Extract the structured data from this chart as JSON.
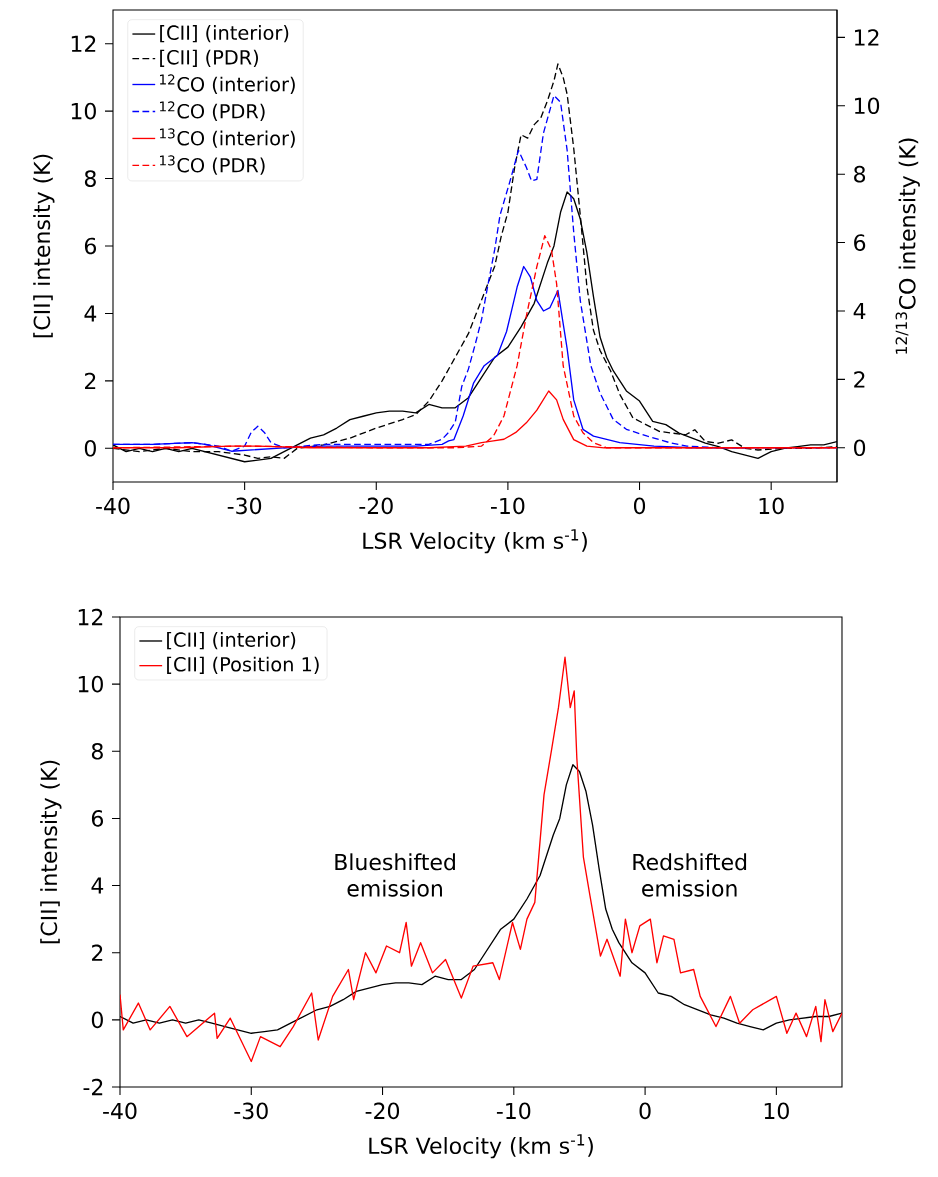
{
  "chart_data": [
    {
      "type": "line",
      "xlabel": "LSR Velocity (km s$^{-1}$)",
      "ylabel": "[CII] intensity (K)",
      "y2label": "$^{12/13}$CO intensity (K)",
      "xlim": [
        -40,
        15
      ],
      "ylim": [
        -1,
        13
      ],
      "y2lim": [
        -1,
        12.8
      ],
      "xticks": [
        -40,
        -30,
        -20,
        -10,
        0,
        10
      ],
      "yticks": [
        0,
        2,
        4,
        6,
        8,
        10,
        12
      ],
      "y2ticks": [
        0,
        2,
        4,
        6,
        8,
        10,
        12
      ],
      "legend": "top left",
      "series": [
        {
          "name": "[CII] (interior)",
          "color": "#000000",
          "line_style": "solid",
          "x": [
            -40,
            -39,
            -38,
            -37,
            -36,
            -35,
            -34,
            -33,
            -32,
            -31,
            -30,
            -29,
            -28,
            -27,
            -26,
            -25,
            -24,
            -23,
            -22,
            -21,
            -20,
            -19,
            -18,
            -17,
            -16,
            -15,
            -14,
            -13,
            -12,
            -11,
            -10,
            -9,
            -8,
            -7,
            -6.5,
            -6,
            -5.5,
            -5,
            -4.5,
            -4,
            -3.5,
            -3,
            -2.5,
            -2,
            -1,
            0,
            1,
            2,
            3,
            4,
            5,
            6,
            7,
            8,
            9,
            10,
            11,
            12,
            13,
            14,
            15
          ],
          "values": [
            0.1,
            -0.1,
            0.0,
            -0.1,
            0.0,
            -0.1,
            0.0,
            -0.1,
            -0.2,
            -0.3,
            -0.4,
            -0.35,
            -0.3,
            -0.1,
            0.1,
            0.3,
            0.4,
            0.6,
            0.85,
            0.95,
            1.05,
            1.1,
            1.1,
            1.05,
            1.3,
            1.2,
            1.2,
            1.5,
            2.1,
            2.7,
            3.0,
            3.6,
            4.3,
            5.5,
            6.0,
            7.0,
            7.6,
            7.4,
            6.8,
            5.8,
            4.5,
            3.3,
            2.7,
            2.3,
            1.7,
            1.4,
            0.8,
            0.7,
            0.45,
            0.3,
            0.15,
            0.05,
            -0.1,
            -0.2,
            -0.3,
            -0.1,
            0.0,
            0.05,
            0.1,
            0.1,
            0.2
          ]
        },
        {
          "name": "[CII] (PDR)",
          "color": "#000000",
          "line_style": "dashed",
          "x": [
            -40,
            -38,
            -36,
            -34,
            -32,
            -30,
            -29,
            -28,
            -27,
            -26,
            -24,
            -22,
            -20,
            -18,
            -17,
            -16,
            -15,
            -14,
            -13,
            -12,
            -11,
            -10.5,
            -10,
            -9.5,
            -9,
            -8.5,
            -8,
            -7.5,
            -7,
            -6.5,
            -6.2,
            -5.8,
            -5.5,
            -5,
            -4.5,
            -4,
            -3.5,
            -3,
            -2.2,
            -1.5,
            -0.5,
            0.5,
            1.5,
            2.5,
            3.5,
            4.2,
            5,
            6,
            7,
            8,
            9,
            11,
            13,
            15
          ],
          "values": [
            0.0,
            -0.1,
            0.0,
            -0.1,
            -0.1,
            -0.2,
            -0.3,
            -0.25,
            -0.3,
            0.0,
            0.1,
            0.3,
            0.6,
            0.85,
            1.0,
            1.4,
            2.0,
            2.7,
            3.4,
            4.4,
            5.4,
            6.3,
            7.0,
            8.3,
            9.3,
            9.2,
            9.6,
            9.8,
            10.3,
            10.9,
            11.4,
            11.0,
            10.5,
            8.9,
            6.9,
            4.8,
            3.5,
            2.9,
            2.3,
            1.6,
            0.9,
            0.7,
            0.5,
            0.45,
            0.4,
            0.55,
            0.2,
            0.15,
            0.25,
            0.0,
            -0.05,
            0.0,
            0.0,
            0.05
          ]
        },
        {
          "name": "$^{12}$CO (interior)",
          "color": "#0000ff",
          "line_style": "solid",
          "axis": "y2",
          "x": [
            -40,
            -37,
            -34,
            -33,
            -31,
            -29,
            -27,
            -24,
            -20,
            -17,
            -15,
            -14.5,
            -14.1,
            -13.4,
            -12.6,
            -11.8,
            -10.8,
            -10.1,
            -9.3,
            -8.8,
            -8.3,
            -7.8,
            -7.3,
            -6.8,
            -6.2,
            -5.5,
            -5,
            -4.3,
            -3.5,
            -1.5,
            1.1,
            4,
            8
          ],
          "values": [
            0.1,
            0.1,
            0.15,
            0.1,
            -0.1,
            -0.05,
            0.0,
            0.05,
            0.05,
            0.05,
            0.1,
            0.2,
            0.24,
            0.93,
            1.9,
            2.4,
            2.7,
            3.4,
            4.7,
            5.3,
            5.0,
            4.3,
            4.0,
            4.1,
            4.6,
            2.9,
            1.4,
            0.54,
            0.34,
            0.15,
            0.05,
            0.0,
            0.0
          ]
        },
        {
          "name": "$^{12}$CO (PDR)",
          "color": "#0000ff",
          "line_style": "dashed",
          "axis": "y2",
          "x": [
            -40,
            -37,
            -34,
            -32,
            -31,
            -30,
            -29.5,
            -29,
            -28.5,
            -28,
            -27,
            -24,
            -20,
            -16,
            -15,
            -14.5,
            -14,
            -13.5,
            -13,
            -12.5,
            -12,
            -11.5,
            -11,
            -10.6,
            -9.8,
            -9.2,
            -8.6,
            -8.2,
            -7.8,
            -7.3,
            -6.5,
            -6,
            -5.5,
            -5,
            -4.5,
            -3.7,
            -3,
            -2,
            -1,
            0.6,
            2.3,
            3.6,
            6,
            10,
            15
          ],
          "values": [
            0.1,
            0.1,
            0.15,
            0.05,
            -0.1,
            0.05,
            0.45,
            0.63,
            0.45,
            0.15,
            0.0,
            0.1,
            0.1,
            0.1,
            0.25,
            0.45,
            0.75,
            1.8,
            2.3,
            3.0,
            3.75,
            4.8,
            5.8,
            6.8,
            7.85,
            8.7,
            8.2,
            7.8,
            7.85,
            9.2,
            10.3,
            10.1,
            8.7,
            6.3,
            4.3,
            2.4,
            1.6,
            0.83,
            0.54,
            0.34,
            0.15,
            0.05,
            0.0,
            0.0,
            0.0
          ]
        },
        {
          "name": "$^{13}$CO (interior)",
          "color": "#ff0000",
          "line_style": "solid",
          "axis": "y2",
          "x": [
            -40,
            -35,
            -31,
            -29,
            -25,
            -20,
            -16,
            -13.2,
            -12,
            -11.1,
            -10.3,
            -9.4,
            -8.6,
            -7.8,
            -6.9,
            -6.3,
            -5.8,
            -5,
            -4,
            -2.7,
            0,
            5,
            10,
            15
          ],
          "values": [
            0.0,
            0.0,
            0.05,
            0.05,
            0.0,
            0.0,
            0.0,
            0.05,
            0.15,
            0.2,
            0.25,
            0.45,
            0.73,
            1.1,
            1.66,
            1.4,
            0.83,
            0.24,
            0.05,
            0.0,
            0.0,
            0.0,
            0.0,
            0.0
          ]
        },
        {
          "name": "$^{13}$CO (PDR)",
          "color": "#ff0000",
          "line_style": "dashed",
          "axis": "y2",
          "x": [
            -40,
            -30,
            -20,
            -14,
            -12,
            -11.1,
            -10.3,
            -9.3,
            -8.6,
            -7.8,
            -7.2,
            -6.7,
            -6.3,
            -5.8,
            -5,
            -4.3,
            -3.5,
            -2.5,
            0,
            5,
            10,
            15
          ],
          "values": [
            0.0,
            0.05,
            0.0,
            0.0,
            0.05,
            0.34,
            0.93,
            2.4,
            3.85,
            5.3,
            6.2,
            5.8,
            4.8,
            2.4,
            0.93,
            0.44,
            0.15,
            0.0,
            0.0,
            0.0,
            0.0,
            0.0
          ]
        }
      ]
    },
    {
      "type": "line",
      "xlabel": "LSR Velocity (km s$^{-1}$)",
      "ylabel": "[CII] intensity (K)",
      "xlim": [
        -40,
        15
      ],
      "ylim": [
        -2,
        12
      ],
      "xticks": [
        -40,
        -30,
        -20,
        -10,
        0,
        10
      ],
      "yticks": [
        -2,
        0,
        2,
        4,
        6,
        8,
        10,
        12
      ],
      "legend": "top left",
      "annotations": [
        "Blueshifted emission",
        "Redshifted emission"
      ],
      "series": [
        {
          "name": "[CII] (interior)",
          "color": "#000000",
          "line_style": "solid",
          "x": [
            -40,
            -39,
            -38,
            -37,
            -36,
            -35,
            -34,
            -33,
            -32,
            -31,
            -30,
            -29,
            -28,
            -27,
            -26,
            -25,
            -24,
            -23,
            -22,
            -21,
            -20,
            -19,
            -18,
            -17,
            -16,
            -15,
            -14,
            -13,
            -12,
            -11,
            -10,
            -9,
            -8,
            -7,
            -6.5,
            -6,
            -5.5,
            -5,
            -4.5,
            -4,
            -3.5,
            -3,
            -2.5,
            -2,
            -1,
            0,
            1,
            2,
            3,
            4,
            5,
            6,
            7,
            8,
            9,
            10,
            11,
            12,
            13,
            14,
            15
          ],
          "values": [
            0.1,
            -0.1,
            0.0,
            -0.1,
            0.0,
            -0.1,
            0.0,
            -0.1,
            -0.2,
            -0.3,
            -0.4,
            -0.35,
            -0.3,
            -0.1,
            0.1,
            0.3,
            0.4,
            0.6,
            0.85,
            0.95,
            1.05,
            1.1,
            1.1,
            1.05,
            1.3,
            1.2,
            1.2,
            1.5,
            2.1,
            2.7,
            3.0,
            3.6,
            4.3,
            5.5,
            6.0,
            7.0,
            7.6,
            7.4,
            6.8,
            5.8,
            4.5,
            3.3,
            2.7,
            2.3,
            1.7,
            1.4,
            0.8,
            0.7,
            0.45,
            0.3,
            0.15,
            0.05,
            -0.1,
            -0.2,
            -0.3,
            -0.1,
            0.0,
            0.05,
            0.1,
            0.1,
            0.2
          ]
        },
        {
          "name": "[CII] (Position 1)",
          "color": "#ff0000",
          "line_style": "solid",
          "x": [
            -40,
            -39.75,
            -38.6,
            -37.7,
            -36.2,
            -34.9,
            -32.8,
            -32.6,
            -31.6,
            -30,
            -29.3,
            -27.8,
            -26.8,
            -25.4,
            -24.9,
            -23.8,
            -22.6,
            -22.2,
            -21.3,
            -20.5,
            -19.7,
            -18.7,
            -18.2,
            -17.8,
            -17.1,
            -16.2,
            -15.2,
            -14,
            -13.1,
            -11.6,
            -11.1,
            -10.1,
            -9.5,
            -9,
            -8.4,
            -7.7,
            -7.1,
            -6.6,
            -6.1,
            -5.7,
            -5.4,
            -5.2,
            -4.7,
            -4.2,
            -3.4,
            -2.9,
            -1.9,
            -1.5,
            -1,
            -0.4,
            0.4,
            0.9,
            1.4,
            2.2,
            2.7,
            3.7,
            4.2,
            5.4,
            6.5,
            7.2,
            8.2,
            10,
            10.8,
            11.5,
            12.3,
            13,
            13.4,
            13.7,
            14.3,
            15
          ],
          "values": [
            0.75,
            -0.3,
            0.5,
            -0.3,
            0.4,
            -0.5,
            0.2,
            -0.55,
            0.05,
            -1.24,
            -0.5,
            -0.8,
            -0.2,
            0.8,
            -0.6,
            0.7,
            1.5,
            0.6,
            2.0,
            1.4,
            2.2,
            2.0,
            2.9,
            1.6,
            2.3,
            1.4,
            1.8,
            0.65,
            1.6,
            1.7,
            1.2,
            2.9,
            2.1,
            3.0,
            3.5,
            6.7,
            8.1,
            9.3,
            10.8,
            9.3,
            9.8,
            7.8,
            4.85,
            3.7,
            1.9,
            2.4,
            1.3,
            3.0,
            2.0,
            2.8,
            3.0,
            1.7,
            2.5,
            2.4,
            1.4,
            1.5,
            0.7,
            -0.2,
            0.7,
            -0.1,
            0.3,
            0.7,
            -0.4,
            0.2,
            -0.5,
            0.4,
            -0.65,
            0.6,
            -0.35,
            0.2
          ]
        }
      ]
    }
  ]
}
